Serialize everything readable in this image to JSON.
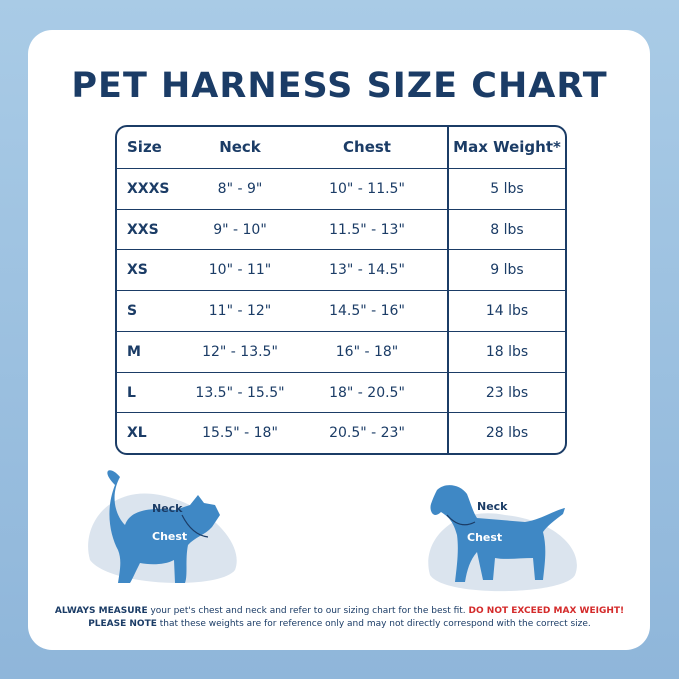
{
  "title": "PET HARNESS SIZE CHART",
  "table": {
    "headers": [
      "Size",
      "Neck",
      "Chest",
      "Max Weight*"
    ],
    "rows": [
      [
        "XXXS",
        "8\" - 9\"",
        "10\" - 11.5\"",
        "5 lbs"
      ],
      [
        "XXS",
        "9\" - 10\"",
        "11.5\" - 13\"",
        "8 lbs"
      ],
      [
        "XS",
        "10\" - 11\"",
        "13\" - 14.5\"",
        "9 lbs"
      ],
      [
        "S",
        "11\" - 12\"",
        "14.5\" - 16\"",
        "14 lbs"
      ],
      [
        "M",
        "12\" - 13.5\"",
        "16\" - 18\"",
        "18 lbs"
      ],
      [
        "L",
        "13.5\" - 15.5\"",
        "18\" - 20.5\"",
        "23 lbs"
      ],
      [
        "XL",
        "15.5\" - 18\"",
        "20.5\" - 23\"",
        "28 lbs"
      ]
    ]
  },
  "cat": {
    "neck_label": "Neck",
    "chest_label": "Chest"
  },
  "dog": {
    "neck_label": "Neck",
    "chest_label": "Chest"
  },
  "footer": {
    "line1": {
      "lead": "ALWAYS MEASURE",
      "body": "your pet's chest and neck and refer to our sizing chart for the best fit.",
      "warning": "DO NOT EXCEED MAX WEIGHT!"
    },
    "line2": {
      "lead": "PLEASE NOTE",
      "body": "that these weights are for reference only and may not directly correspond with the correct size."
    }
  }
}
